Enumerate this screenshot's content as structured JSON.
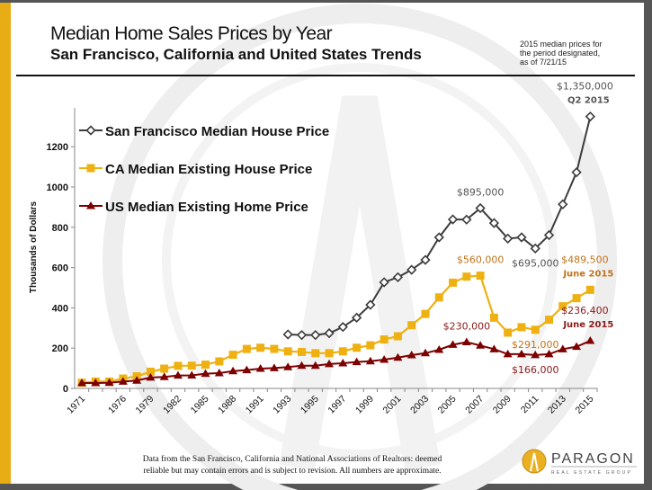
{
  "header": {
    "title": "Median Home Sales Prices by Year",
    "subtitle": "San Francisco, California and United States Trends",
    "note_lines": [
      "2015 median prices for",
      "the period designated,",
      "as of 7/21/15"
    ]
  },
  "footer": {
    "lines": [
      "Data from the San Francisco, California and National Associations of Realtors: deemed",
      "reliable but may contain errors and is subject to revision. All numbers are approximate."
    ]
  },
  "logo": {
    "name": "PARAGON",
    "tagline": "REAL ESTATE GROUP"
  },
  "colors": {
    "sf": "#3c3c3c",
    "ca": "#eeb111",
    "us": "#7d0000",
    "accent": "#e8ad14",
    "ca_label": "#c0741c",
    "us_label": "#8b1a1a",
    "sf_label": "#555555"
  },
  "chart_data": {
    "type": "line",
    "ylabel": "Thousands of Dollars",
    "xlabel": "",
    "ylim": [
      0,
      1350
    ],
    "yticks": [
      0,
      200,
      400,
      600,
      800,
      1000,
      1200
    ],
    "grid": false,
    "legend_position": "top-left",
    "categories": [
      "1971",
      "",
      "",
      "1976",
      "",
      "1979",
      "",
      "1982",
      "",
      "1985",
      "",
      "1988",
      "",
      "1991",
      "",
      "1993",
      "",
      "1995",
      "",
      "1997",
      "",
      "1999",
      "",
      "2001",
      "",
      "2003",
      "",
      "2005",
      "",
      "2007",
      "",
      "2009",
      "",
      "2011",
      "",
      "2013",
      "",
      "2015"
    ],
    "series": [
      {
        "name": "San Francisco Median House Price",
        "marker": "diamond-open",
        "values": [
          null,
          null,
          null,
          null,
          null,
          null,
          null,
          null,
          null,
          null,
          null,
          null,
          null,
          null,
          null,
          268,
          265,
          265,
          274,
          305,
          351,
          415,
          527,
          552,
          589,
          638,
          750,
          839,
          838,
          895,
          821,
          744,
          750,
          695,
          761,
          914,
          1073,
          1350
        ]
      },
      {
        "name": "CA Median Existing House Price",
        "marker": "square",
        "values": [
          28,
          34,
          34,
          49,
          60,
          83,
          98,
          112,
          113,
          118,
          134,
          167,
          196,
          202,
          196,
          184,
          181,
          175,
          175,
          184,
          202,
          214,
          243,
          259,
          314,
          370,
          452,
          525,
          555,
          560,
          351,
          277,
          304,
          291,
          341,
          408,
          448,
          489.5
        ]
      },
      {
        "name": "US Median Existing Home Price",
        "marker": "triangle",
        "values": [
          27,
          27,
          28,
          34,
          39,
          54,
          57,
          64,
          65,
          73,
          76,
          86,
          91,
          98,
          101,
          106,
          113,
          113,
          121,
          125,
          131,
          135,
          143,
          153,
          165,
          175,
          192,
          217,
          230,
          213,
          195,
          170,
          170,
          166,
          170,
          195,
          207,
          236.4
        ]
      }
    ],
    "annotations": [
      {
        "series": 0,
        "index": 29,
        "text": "$895,000",
        "pos": "above"
      },
      {
        "series": 0,
        "index": 33,
        "text": "$695,000",
        "pos": "below"
      },
      {
        "series": 0,
        "index": 37,
        "text": "$1,350,000",
        "text2": "Q2 2015",
        "pos": "above"
      },
      {
        "series": 1,
        "index": 29,
        "text": "$560,000",
        "pos": "above"
      },
      {
        "series": 1,
        "index": 33,
        "text": "$291,000",
        "pos": "below"
      },
      {
        "series": 1,
        "index": 37,
        "text": "$489,500",
        "text2": "June 2015",
        "pos": "above"
      },
      {
        "series": 2,
        "index": 28,
        "text": "$230,000",
        "pos": "above"
      },
      {
        "series": 2,
        "index": 33,
        "text": "$166,000",
        "pos": "below"
      },
      {
        "series": 2,
        "index": 37,
        "text": "$236,400",
        "text2": "June 2015",
        "pos": "above"
      }
    ]
  }
}
